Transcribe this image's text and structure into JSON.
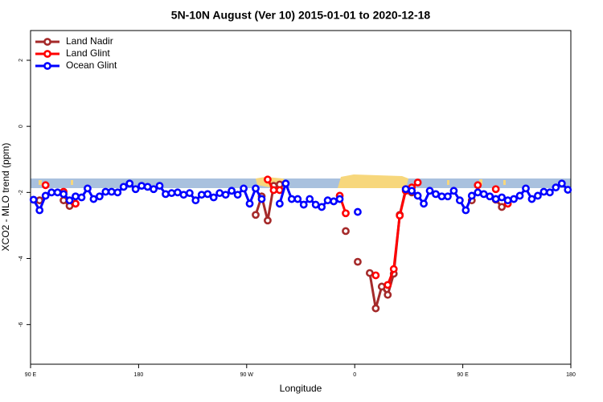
{
  "chart_data": {
    "type": "line",
    "title": "5N-10N August (Ver 10)   2015-01-01 to 2020-12-18",
    "xlabel": "Longitude",
    "ylabel": "XCO2 - MLO trend (ppm)",
    "xlim": [
      90,
      540
    ],
    "ylim": [
      -7.2,
      2.9
    ],
    "xticks": [
      {
        "value": 90,
        "label": "90 E"
      },
      180,
      {
        "value": 270,
        "label": "90 W"
      },
      {
        "value": 360,
        "label": "0"
      },
      {
        "value": 450,
        "label": "90 E"
      },
      {
        "value": 540,
        "label": "180"
      }
    ],
    "yticks": [
      2,
      0,
      -2,
      -4,
      -6
    ],
    "legend": "top-left",
    "x": [
      92.5,
      97.5,
      102.5,
      107.5,
      112.5,
      117.5,
      122.5,
      127.5,
      132.5,
      137.5,
      142.5,
      147.5,
      152.5,
      157.5,
      162.5,
      167.5,
      172.5,
      177.5,
      182.5,
      187.5,
      192.5,
      197.5,
      202.5,
      207.5,
      212.5,
      217.5,
      222.5,
      227.5,
      232.5,
      237.5,
      242.5,
      247.5,
      252.5,
      257.5,
      262.5,
      267.5,
      272.5,
      277.5,
      282.5,
      287.5,
      292.5,
      297.5,
      302.5,
      307.5,
      312.5,
      317.5,
      322.5,
      327.5,
      332.5,
      337.5,
      342.5,
      347.5,
      352.5,
      357.5,
      362.5,
      367.5,
      372.5,
      377.5,
      382.5,
      387.5,
      392.5,
      397.5,
      402.5,
      407.5,
      412.5,
      417.5,
      422.5,
      427.5,
      432.5,
      437.5,
      442.5,
      447.5,
      452.5,
      457.5,
      462.5,
      467.5,
      472.5,
      477.5,
      482.5,
      487.5,
      492.5,
      497.5,
      502.5,
      507.5,
      512.5,
      517.5,
      522.5,
      527.5,
      532.5,
      537.5
    ],
    "series": [
      {
        "name": "Land Nadir",
        "color": "#a52a2a",
        "values": [
          null,
          -2.24,
          null,
          null,
          null,
          -2.24,
          -2.41,
          null,
          null,
          null,
          null,
          null,
          null,
          null,
          null,
          null,
          null,
          null,
          null,
          null,
          null,
          null,
          null,
          null,
          null,
          null,
          null,
          null,
          null,
          null,
          null,
          null,
          null,
          null,
          null,
          null,
          null,
          -2.68,
          -2.12,
          -2.85,
          -1.8,
          -1.76,
          null,
          null,
          null,
          null,
          null,
          null,
          null,
          null,
          null,
          null,
          -3.17,
          null,
          -4.1,
          null,
          -4.44,
          -5.51,
          -4.85,
          -5.1,
          -4.46,
          -2.68,
          -1.9,
          -2.0,
          null,
          null,
          null,
          null,
          null,
          null,
          null,
          null,
          null,
          -2.24,
          null,
          null,
          null,
          -2.22,
          -2.44,
          null,
          null,
          null,
          null,
          null,
          null,
          null,
          null,
          null,
          null,
          null
        ]
      },
      {
        "name": "Land Glint",
        "color": "#ff0000",
        "values": [
          null,
          null,
          -1.78,
          null,
          null,
          -1.98,
          null,
          -2.34,
          null,
          null,
          null,
          null,
          null,
          null,
          null,
          null,
          null,
          null,
          null,
          null,
          null,
          null,
          null,
          null,
          null,
          null,
          null,
          null,
          null,
          null,
          null,
          null,
          null,
          null,
          null,
          null,
          null,
          null,
          null,
          -1.61,
          -1.93,
          -1.93,
          null,
          null,
          null,
          null,
          null,
          null,
          null,
          null,
          null,
          -2.1,
          -2.63,
          null,
          null,
          null,
          null,
          -4.51,
          null,
          -4.8,
          -4.32,
          -2.7,
          -1.95,
          -1.85,
          -1.7,
          null,
          null,
          null,
          null,
          null,
          null,
          null,
          null,
          null,
          -1.78,
          null,
          null,
          -1.9,
          null,
          -2.34,
          null,
          null,
          null,
          null,
          null,
          null,
          null,
          null,
          null,
          null
        ]
      },
      {
        "name": "Ocean Glint",
        "color": "#0000ff",
        "values": [
          -2.22,
          -2.54,
          -2.1,
          -2,
          -2,
          -2.05,
          -2.24,
          -2.12,
          -2.15,
          -1.88,
          -2.2,
          -2.12,
          -1.98,
          -1.98,
          -2,
          -1.83,
          -1.73,
          -1.9,
          -1.8,
          -1.83,
          -1.9,
          -1.8,
          -2.05,
          -2.02,
          -2,
          -2.07,
          -2.02,
          -2.24,
          -2.07,
          -2.05,
          -2.15,
          -2.02,
          -2.07,
          -1.95,
          -2.07,
          -1.88,
          -2.34,
          -1.88,
          -2.2,
          null,
          null,
          -2.34,
          -1.73,
          -2.2,
          -2.2,
          -2.37,
          -2.2,
          -2.37,
          -2.44,
          -2.24,
          -2.27,
          -2.2,
          null,
          null,
          -2.59,
          null,
          null,
          null,
          null,
          null,
          null,
          null,
          -1.9,
          -1.95,
          -2.1,
          -2.34,
          -1.95,
          -2.05,
          -2.12,
          -2.12,
          -1.95,
          -2.24,
          -2.54,
          -2.1,
          -2,
          -2.05,
          -2.12,
          -2.2,
          -2.15,
          -2.24,
          -2.2,
          -2.1,
          -1.88,
          -2.2,
          -2.1,
          -1.98,
          -2,
          -1.85,
          -1.73,
          -1.92
        ]
      }
    ]
  }
}
